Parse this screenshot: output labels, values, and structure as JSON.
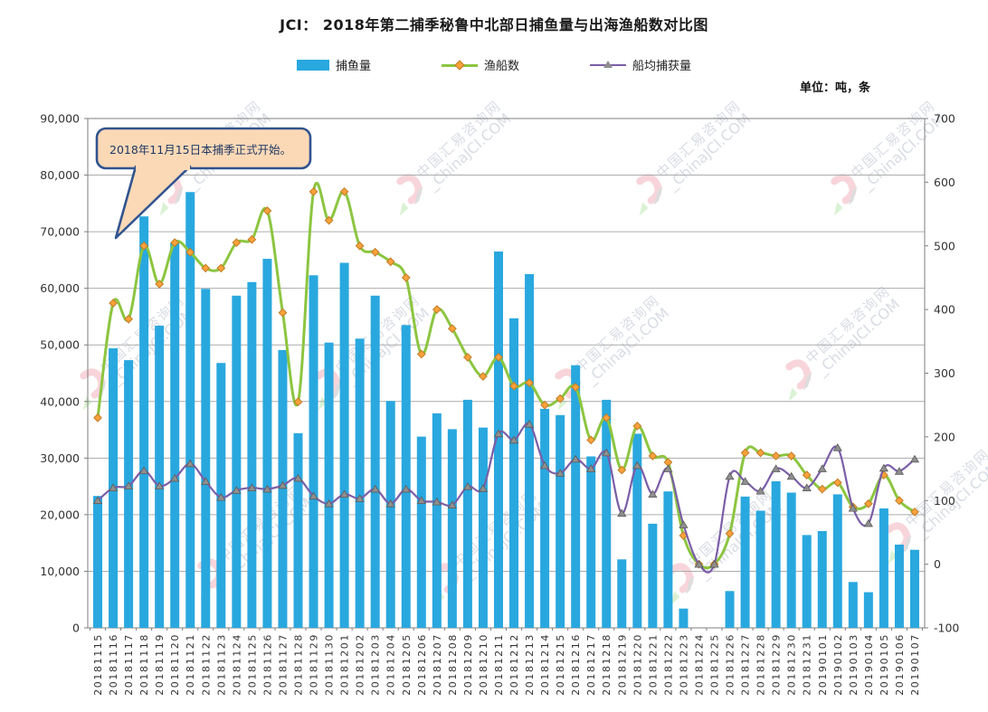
{
  "header": {
    "title": "JCI：  2018年第二捕季秘鲁中北部日捕鱼量与出海渔船数对比图",
    "unit_label": "单位：吨，条"
  },
  "legend": [
    {
      "label": "捕鱼量",
      "type": "bar"
    },
    {
      "label": "渔船数",
      "type": "line"
    },
    {
      "label": "船均捕获量",
      "type": "line"
    }
  ],
  "callout": {
    "text": "2018年11月15日本捕季正式开始。"
  },
  "watermark": {
    "cn": "中国汇易咨询网",
    "en": "ChinaJCI.COM"
  },
  "colors": {
    "bar": "#29A8DF",
    "vessels_line": "#8CC540",
    "vessels_marker": "#F9A13B",
    "vessels_marker_border": "#BF7D26",
    "avg_line": "#7B5EA7",
    "avg_marker": "#8F8F8F",
    "avg_marker_border": "#5A5A5A",
    "grid": "#ACACAC",
    "axis_border": "#7F7F7F",
    "axis_text": "#333333",
    "title_text": "#1A1A1A",
    "callout_fill": "#FCD9B6",
    "callout_border": "#31538F",
    "watermark_text": "#C7CDD8",
    "watermark_pink": "#F4C3CB",
    "watermark_green": "#CBEDC0",
    "watermark_gray": "#CFCFCF",
    "background": "#FFFFFF"
  },
  "chart_data": {
    "type": "combo",
    "title": "JCI：  2018年第二捕季秘鲁中北部日捕鱼量与出海渔船数对比图",
    "unit": "吨，条",
    "grid": true,
    "legend_position": "top",
    "categories": [
      "20181115",
      "20181116",
      "20181117",
      "20181118",
      "20181119",
      "20181120",
      "20181121",
      "20181122",
      "20181123",
      "20181124",
      "20181125",
      "20181126",
      "20181127",
      "20181128",
      "20181129",
      "20181130",
      "20181201",
      "20181202",
      "20181203",
      "20181204",
      "20181205",
      "20181206",
      "20181207",
      "20181208",
      "20181209",
      "20181210",
      "20181211",
      "20181212",
      "20181213",
      "20181214",
      "20181215",
      "20181216",
      "20181217",
      "20181218",
      "20181219",
      "20181220",
      "20181221",
      "20181222",
      "20181223",
      "20181224",
      "20181225",
      "20181226",
      "20181227",
      "20181228",
      "20181229",
      "20181230",
      "20181231",
      "20190101",
      "20190102",
      "20190103",
      "20190104",
      "20190105",
      "20190106",
      "20190107"
    ],
    "series": [
      {
        "name": "捕鱼量",
        "type": "bar",
        "axis": "left",
        "values": [
          23300,
          49400,
          47300,
          72700,
          53400,
          68100,
          77000,
          59900,
          46800,
          58700,
          61100,
          65200,
          49100,
          34400,
          62300,
          50400,
          64500,
          51100,
          58700,
          40100,
          53500,
          33800,
          37900,
          35100,
          40300,
          35400,
          66500,
          54700,
          62500,
          38700,
          37600,
          46400,
          30300,
          40300,
          12100,
          34300,
          18400,
          24100,
          3400,
          0,
          0,
          6500,
          23200,
          20700,
          25900,
          23900,
          16400,
          17100,
          23600,
          8100,
          6300,
          21100,
          14700,
          13800
        ]
      },
      {
        "name": "渔船数",
        "type": "line",
        "axis": "right",
        "values": [
          230,
          410,
          385,
          500,
          440,
          505,
          490,
          465,
          465,
          505,
          510,
          555,
          395,
          255,
          585,
          540,
          585,
          500,
          490,
          475,
          450,
          330,
          400,
          370,
          325,
          295,
          325,
          280,
          285,
          250,
          260,
          278,
          195,
          230,
          148,
          217,
          170,
          160,
          45,
          0,
          0,
          48,
          175,
          175,
          170,
          170,
          140,
          118,
          128,
          90,
          95,
          140,
          100,
          82
        ]
      },
      {
        "name": "船均捕获量",
        "type": "line",
        "axis": "right",
        "values": [
          100,
          120,
          123,
          147,
          123,
          135,
          158,
          130,
          105,
          116,
          120,
          118,
          124,
          135,
          107,
          95,
          110,
          103,
          118,
          95,
          118,
          100,
          98,
          93,
          122,
          119,
          205,
          195,
          220,
          155,
          143,
          165,
          150,
          175,
          80,
          155,
          110,
          150,
          62,
          0,
          0,
          138,
          130,
          115,
          150,
          138,
          120,
          150,
          183,
          88,
          64,
          151,
          146,
          165
        ]
      }
    ],
    "left_axis": {
      "min": 0,
      "max": 90000,
      "step": 10000,
      "tick_labels": [
        "0",
        "10,000",
        "20,000",
        "30,000",
        "40,000",
        "50,000",
        "60,000",
        "70,000",
        "80,000",
        "90,000"
      ]
    },
    "right_axis": {
      "min": -100,
      "max": 700,
      "step": 100,
      "tick_labels": [
        "-100",
        "0",
        "100",
        "200",
        "300",
        "400",
        "500",
        "600",
        "700"
      ]
    },
    "annotation": "2018年11月15日本捕季正式开始。"
  }
}
